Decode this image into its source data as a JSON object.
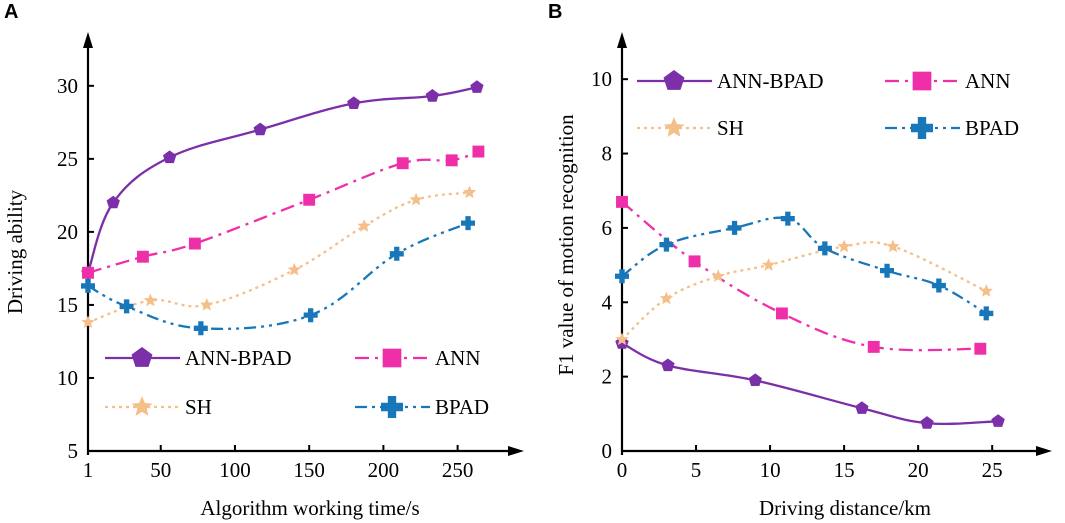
{
  "colors": {
    "ANN-BPAD": "#7b2fa8",
    "ANN": "#ee2fa8",
    "SH": "#f5bf8a",
    "BPAD": "#1777b8"
  },
  "chart_data": [
    {
      "type": "line",
      "panel": "A",
      "title": "",
      "xlabel": "Algorithm working time/s",
      "ylabel": "Driving ability",
      "xlim": [
        1,
        290
      ],
      "ylim": [
        5,
        33
      ],
      "xticks": [
        1,
        50,
        100,
        150,
        200,
        250
      ],
      "xtick_labels": [
        "1",
        "50",
        "100",
        "150",
        "200",
        "250"
      ],
      "yticks": [
        5,
        10,
        15,
        20,
        25,
        30
      ],
      "ytick_labels": [
        "5",
        "10",
        "15",
        "20",
        "25",
        "30"
      ],
      "legend": [
        {
          "label": "ANN-BPAD",
          "series": "ANN-BPAD"
        },
        {
          "label": "ANN",
          "series": "ANN"
        },
        {
          "label": "SH",
          "series": "SH"
        },
        {
          "label": "BPAD",
          "series": "BPAD"
        }
      ],
      "series": [
        {
          "name": "ANN-BPAD",
          "marker": "pentagon",
          "dash": "solid",
          "x": [
            1,
            18,
            56,
            117,
            180,
            233,
            263
          ],
          "y": [
            17.2,
            22.0,
            25.1,
            27.0,
            28.8,
            29.3,
            29.9
          ]
        },
        {
          "name": "ANN",
          "marker": "square",
          "dash": "dashdot",
          "x": [
            1,
            38,
            73,
            150,
            213,
            246,
            264
          ],
          "y": [
            17.2,
            18.3,
            19.2,
            22.2,
            24.7,
            24.9,
            25.5
          ]
        },
        {
          "name": "SH",
          "marker": "star",
          "dash": "dot",
          "x": [
            1,
            43,
            81,
            140,
            187,
            222,
            258
          ],
          "y": [
            13.8,
            15.3,
            15.0,
            17.4,
            20.4,
            22.2,
            22.7
          ]
        },
        {
          "name": "BPAD",
          "marker": "cross",
          "dash": "dashdotdot",
          "x": [
            1,
            27,
            77,
            151,
            209,
            257
          ],
          "y": [
            16.3,
            14.9,
            13.4,
            14.3,
            18.5,
            20.6
          ]
        }
      ]
    },
    {
      "type": "line",
      "panel": "B",
      "title": "",
      "xlabel": "Driving distance/km",
      "ylabel": "F1 value of motion recognition",
      "xlim": [
        0,
        28.5
      ],
      "ylim": [
        0,
        11
      ],
      "xticks": [
        0,
        5,
        10,
        15,
        20,
        25
      ],
      "xtick_labels": [
        "0",
        "5",
        "10",
        "15",
        "20",
        "25"
      ],
      "yticks": [
        0,
        2,
        4,
        6,
        8,
        10
      ],
      "ytick_labels": [
        "0",
        "2",
        "4",
        "6",
        "8",
        "10"
      ],
      "legend": [
        {
          "label": "ANN-BPAD",
          "series": "ANN-BPAD"
        },
        {
          "label": "ANN",
          "series": "ANN"
        },
        {
          "label": "SH",
          "series": "SH"
        },
        {
          "label": "BPAD",
          "series": "BPAD"
        }
      ],
      "series": [
        {
          "name": "ANN-BPAD",
          "marker": "pentagon",
          "dash": "solid",
          "x": [
            0,
            3.1,
            9.0,
            16.2,
            20.6,
            25.4
          ],
          "y": [
            2.9,
            2.3,
            1.9,
            1.15,
            0.75,
            0.8
          ]
        },
        {
          "name": "ANN",
          "marker": "square",
          "dash": "dashdot",
          "x": [
            0,
            4.9,
            10.8,
            17.0,
            24.2
          ],
          "y": [
            6.7,
            5.1,
            3.7,
            2.8,
            2.75
          ]
        },
        {
          "name": "SH",
          "marker": "star",
          "dash": "dot",
          "x": [
            0,
            3.0,
            6.5,
            9.9,
            15.0,
            18.3,
            24.6
          ],
          "y": [
            3.0,
            4.1,
            4.7,
            5.0,
            5.5,
            5.5,
            4.3
          ]
        },
        {
          "name": "BPAD",
          "marker": "cross",
          "dash": "dashdotdot",
          "x": [
            0,
            3.0,
            7.6,
            11.2,
            13.7,
            17.9,
            21.4,
            24.6
          ],
          "y": [
            4.7,
            5.55,
            6.0,
            6.25,
            5.45,
            4.85,
            4.45,
            3.7
          ]
        }
      ]
    }
  ]
}
